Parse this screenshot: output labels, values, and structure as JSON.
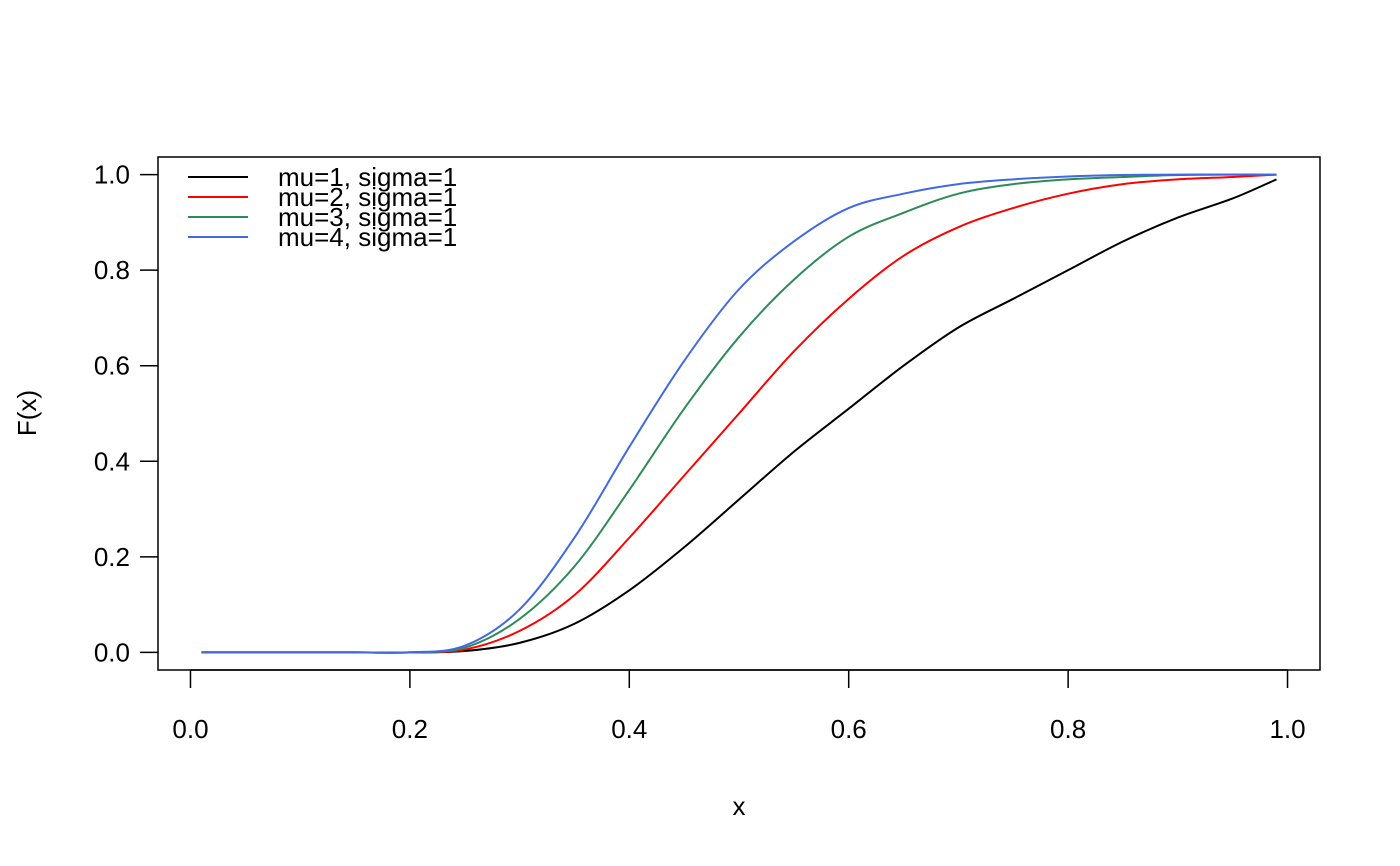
{
  "chart_data": {
    "type": "line",
    "title": "",
    "xlabel": "x",
    "ylabel": "F(x)",
    "xlim": [
      -0.0296,
      1.0296
    ],
    "ylim": [
      -0.0368,
      1.0368
    ],
    "xticks": [
      0.0,
      0.2,
      0.4,
      0.6,
      0.8,
      1.0
    ],
    "yticks": [
      0.0,
      0.2,
      0.4,
      0.6,
      0.8,
      1.0
    ],
    "xtick_labels": [
      "0.0",
      "0.2",
      "0.4",
      "0.6",
      "0.8",
      "1.0"
    ],
    "ytick_labels": [
      "0.0",
      "0.2",
      "0.4",
      "0.6",
      "0.8",
      "1.0"
    ],
    "grid": false,
    "legend_position": "top-left",
    "x": [
      0.01,
      0.05,
      0.1,
      0.15,
      0.2,
      0.25,
      0.3,
      0.35,
      0.4,
      0.45,
      0.5,
      0.55,
      0.6,
      0.65,
      0.7,
      0.75,
      0.8,
      0.85,
      0.9,
      0.95,
      0.99
    ],
    "series": [
      {
        "name": "mu=1, sigma=1",
        "color": "#000000",
        "values": [
          0.0,
          0.0,
          0.0,
          0.0,
          0.0,
          0.003,
          0.02,
          0.06,
          0.13,
          0.22,
          0.32,
          0.42,
          0.51,
          0.6,
          0.68,
          0.74,
          0.8,
          0.86,
          0.91,
          0.95,
          0.99
        ]
      },
      {
        "name": "mu=2, sigma=1",
        "color": "#ff0000",
        "values": [
          0.0,
          0.0,
          0.0,
          0.0,
          0.0,
          0.006,
          0.045,
          0.12,
          0.24,
          0.37,
          0.5,
          0.63,
          0.74,
          0.83,
          0.89,
          0.93,
          0.96,
          0.98,
          0.99,
          0.995,
          1.0
        ]
      },
      {
        "name": "mu=3, sigma=1",
        "color": "#2e8b57",
        "values": [
          0.0,
          0.0,
          0.0,
          0.0,
          0.0,
          0.01,
          0.07,
          0.18,
          0.34,
          0.51,
          0.66,
          0.78,
          0.87,
          0.92,
          0.96,
          0.98,
          0.99,
          0.995,
          0.999,
          1.0,
          1.0
        ]
      },
      {
        "name": "mu=4, sigma=1",
        "color": "#4169e1",
        "values": [
          0.0,
          0.0,
          0.0,
          0.0,
          0.0,
          0.014,
          0.09,
          0.24,
          0.43,
          0.61,
          0.76,
          0.86,
          0.93,
          0.96,
          0.98,
          0.99,
          0.996,
          0.999,
          1.0,
          1.0,
          1.0
        ]
      }
    ]
  }
}
